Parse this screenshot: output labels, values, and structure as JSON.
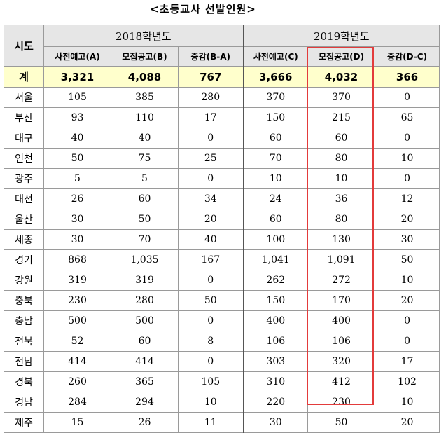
{
  "title": "<초등교사 선발인원>",
  "header": {
    "region": "시도",
    "year2018": "2018학년도",
    "year2019": "2019학년도",
    "cols": [
      "사전예고(A)",
      "모집공고(B)",
      "증감(B-A)",
      "사전예고(C)",
      "모집공고(D)",
      "증감(D-C)"
    ]
  },
  "total": {
    "label": "계",
    "values": [
      "3,321",
      "4,088",
      "767",
      "3,666",
      "4,032",
      "366"
    ]
  },
  "rows": [
    {
      "region": "서울",
      "values": [
        "105",
        "385",
        "280",
        "370",
        "370",
        "0"
      ]
    },
    {
      "region": "부산",
      "values": [
        "93",
        "110",
        "17",
        "150",
        "215",
        "65"
      ]
    },
    {
      "region": "대구",
      "values": [
        "40",
        "40",
        "0",
        "60",
        "60",
        "0"
      ]
    },
    {
      "region": "인천",
      "values": [
        "50",
        "75",
        "25",
        "70",
        "80",
        "10"
      ]
    },
    {
      "region": "광주",
      "values": [
        "5",
        "5",
        "0",
        "10",
        "10",
        "0"
      ]
    },
    {
      "region": "대전",
      "values": [
        "26",
        "60",
        "34",
        "24",
        "36",
        "12"
      ]
    },
    {
      "region": "울산",
      "values": [
        "30",
        "50",
        "20",
        "60",
        "80",
        "20"
      ]
    },
    {
      "region": "세종",
      "values": [
        "30",
        "70",
        "40",
        "100",
        "130",
        "30"
      ]
    },
    {
      "region": "경기",
      "values": [
        "868",
        "1,035",
        "167",
        "1,041",
        "1,091",
        "50"
      ]
    },
    {
      "region": "강원",
      "values": [
        "319",
        "319",
        "0",
        "262",
        "272",
        "10"
      ]
    },
    {
      "region": "충북",
      "values": [
        "230",
        "280",
        "50",
        "150",
        "170",
        "20"
      ]
    },
    {
      "region": "충남",
      "values": [
        "500",
        "500",
        "0",
        "400",
        "400",
        "0"
      ]
    },
    {
      "region": "전북",
      "values": [
        "52",
        "60",
        "8",
        "106",
        "106",
        "0"
      ]
    },
    {
      "region": "전남",
      "values": [
        "414",
        "414",
        "0",
        "303",
        "320",
        "17"
      ]
    },
    {
      "region": "경북",
      "values": [
        "260",
        "365",
        "105",
        "310",
        "412",
        "102"
      ]
    },
    {
      "region": "경남",
      "values": [
        "284",
        "294",
        "10",
        "220",
        "230",
        "10"
      ]
    },
    {
      "region": "제주",
      "values": [
        "15",
        "26",
        "11",
        "30",
        "50",
        "20"
      ]
    }
  ],
  "colors": {
    "header_bg": "#e6e6e6",
    "total_bg": "#ffffcc",
    "highlight_border": "#e33b3b"
  }
}
